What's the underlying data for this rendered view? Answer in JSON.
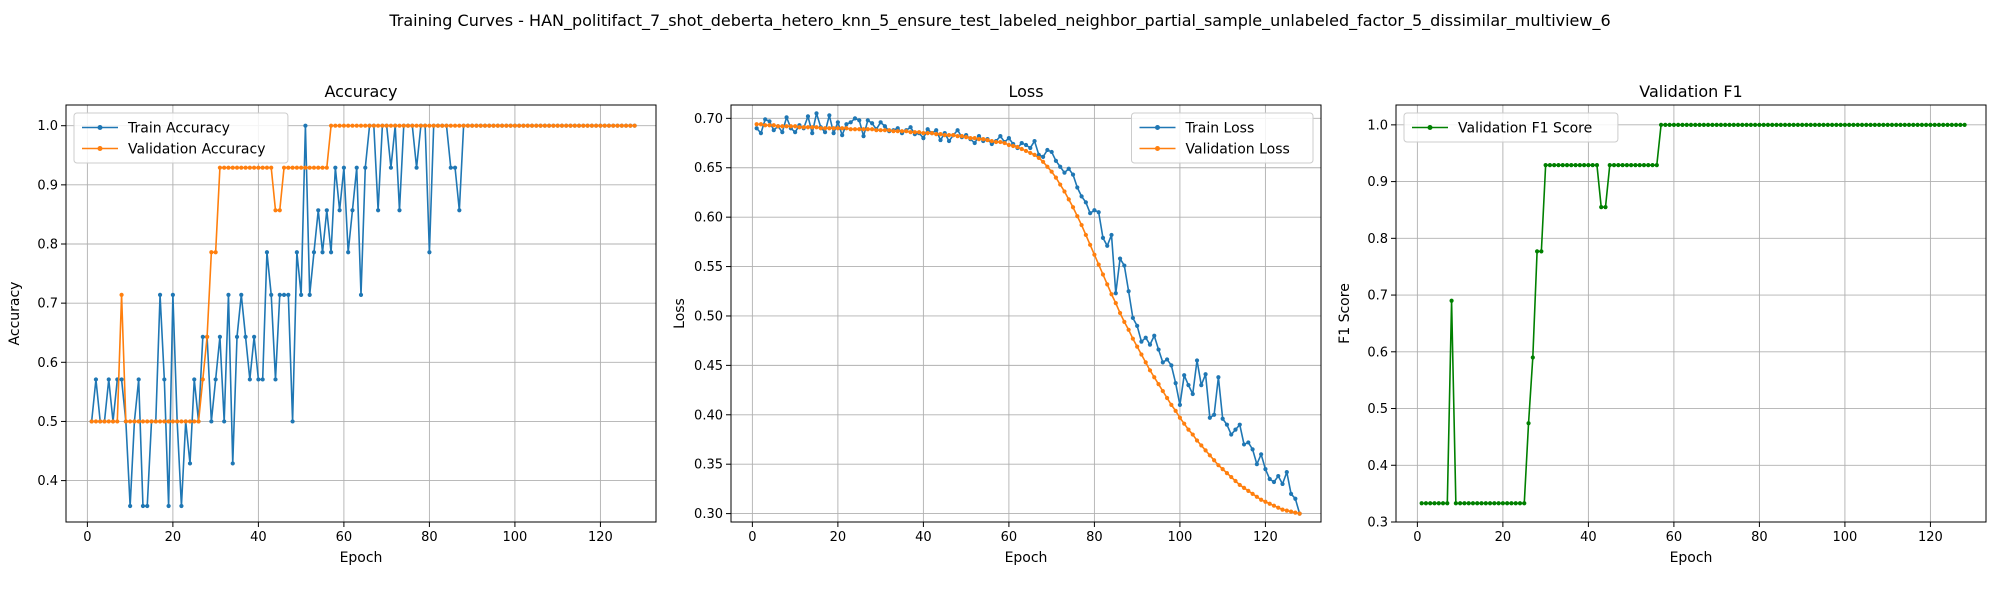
{
  "figure": {
    "suptitle": "Training Curves - HAN_politifact_7_shot_deberta_hetero_knn_5_ensure_test_labeled_neighbor_partial_sample_unlabeled_factor_5_dissimilar_multiview_6"
  },
  "chart_data": [
    {
      "type": "line",
      "title": "Accuracy",
      "xlabel": "Epoch",
      "ylabel": "Accuracy",
      "xlim": [
        -5,
        133
      ],
      "ylim": [
        0.33,
        1.035
      ],
      "xticks": [
        0,
        20,
        40,
        60,
        80,
        100,
        120
      ],
      "yticks": [
        0.4,
        0.5,
        0.6,
        0.7,
        0.8,
        0.9,
        1.0
      ],
      "ytick_labels": [
        "0.4",
        "0.5",
        "0.6",
        "0.7",
        "0.8",
        "0.9",
        "1.0"
      ],
      "grid": true,
      "legend_position": "upper-left",
      "series": [
        {
          "name": "Train Accuracy",
          "color": "#1f77b4",
          "x_start": 1,
          "values": [
            0.5,
            0.571,
            0.5,
            0.5,
            0.571,
            0.5,
            0.571,
            0.571,
            0.5,
            0.357,
            0.5,
            0.571,
            0.357,
            0.357,
            0.5,
            0.5,
            0.714,
            0.571,
            0.357,
            0.714,
            0.5,
            0.357,
            0.5,
            0.429,
            0.571,
            0.5,
            0.643,
            0.643,
            0.5,
            0.571,
            0.643,
            0.5,
            0.714,
            0.429,
            0.643,
            0.714,
            0.643,
            0.571,
            0.643,
            0.571,
            0.571,
            0.786,
            0.714,
            0.571,
            0.714,
            0.714,
            0.714,
            0.5,
            0.786,
            0.714,
            1.0,
            0.714,
            0.786,
            0.857,
            0.786,
            0.857,
            0.786,
            0.929,
            0.857,
            0.929,
            0.786,
            0.857,
            0.929,
            0.714,
            0.929,
            1.0,
            1.0,
            0.857,
            1.0,
            1.0,
            0.929,
            1.0,
            0.857,
            1.0,
            1.0,
            1.0,
            0.929,
            1.0,
            1.0,
            0.786,
            1.0,
            1.0,
            1.0,
            1.0,
            0.929,
            0.929,
            0.857,
            1.0,
            1.0,
            1.0,
            1.0,
            1.0,
            1.0,
            1.0,
            1.0,
            1.0,
            1.0,
            1.0,
            1.0,
            1.0,
            1.0,
            1.0,
            1.0,
            1.0,
            1.0,
            1.0,
            1.0,
            1.0,
            1.0,
            1.0,
            1.0,
            1.0,
            1.0,
            1.0,
            1.0,
            1.0,
            1.0,
            1.0,
            1.0,
            1.0,
            1.0,
            1.0,
            1.0,
            1.0,
            1.0,
            1.0,
            1.0,
            1.0
          ]
        },
        {
          "name": "Validation Accuracy",
          "color": "#ff7f0e",
          "x_start": 1,
          "values": [
            0.5,
            0.5,
            0.5,
            0.5,
            0.5,
            0.5,
            0.5,
            0.714,
            0.5,
            0.5,
            0.5,
            0.5,
            0.5,
            0.5,
            0.5,
            0.5,
            0.5,
            0.5,
            0.5,
            0.5,
            0.5,
            0.5,
            0.5,
            0.5,
            0.5,
            0.5,
            0.571,
            0.643,
            0.786,
            0.786,
            0.929,
            0.929,
            0.929,
            0.929,
            0.929,
            0.929,
            0.929,
            0.929,
            0.929,
            0.929,
            0.929,
            0.929,
            0.929,
            0.857,
            0.857,
            0.929,
            0.929,
            0.929,
            0.929,
            0.929,
            0.929,
            0.929,
            0.929,
            0.929,
            0.929,
            0.929,
            1.0,
            1.0,
            1.0,
            1.0,
            1.0,
            1.0,
            1.0,
            1.0,
            1.0,
            1.0,
            1.0,
            1.0,
            1.0,
            1.0,
            1.0,
            1.0,
            1.0,
            1.0,
            1.0,
            1.0,
            1.0,
            1.0,
            1.0,
            1.0,
            1.0,
            1.0,
            1.0,
            1.0,
            1.0,
            1.0,
            1.0,
            1.0,
            1.0,
            1.0,
            1.0,
            1.0,
            1.0,
            1.0,
            1.0,
            1.0,
            1.0,
            1.0,
            1.0,
            1.0,
            1.0,
            1.0,
            1.0,
            1.0,
            1.0,
            1.0,
            1.0,
            1.0,
            1.0,
            1.0,
            1.0,
            1.0,
            1.0,
            1.0,
            1.0,
            1.0,
            1.0,
            1.0,
            1.0,
            1.0,
            1.0,
            1.0,
            1.0,
            1.0,
            1.0,
            1.0,
            1.0,
            1.0
          ]
        }
      ]
    },
    {
      "type": "line",
      "title": "Loss",
      "xlabel": "Epoch",
      "ylabel": "Loss",
      "xlim": [
        -5,
        133
      ],
      "ylim": [
        0.2915,
        0.7135
      ],
      "xticks": [
        0,
        20,
        40,
        60,
        80,
        100,
        120
      ],
      "yticks": [
        0.3,
        0.35,
        0.4,
        0.45,
        0.5,
        0.55,
        0.6,
        0.65,
        0.7
      ],
      "ytick_labels": [
        "0.30",
        "0.35",
        "0.40",
        "0.45",
        "0.50",
        "0.55",
        "0.60",
        "0.65",
        "0.70"
      ],
      "grid": true,
      "legend_position": "upper-right",
      "series": [
        {
          "name": "Train Loss",
          "color": "#1f77b4",
          "x_start": 1,
          "values": [
            0.69,
            0.685,
            0.699,
            0.697,
            0.688,
            0.692,
            0.686,
            0.701,
            0.69,
            0.686,
            0.693,
            0.69,
            0.702,
            0.685,
            0.705,
            0.691,
            0.686,
            0.703,
            0.685,
            0.696,
            0.683,
            0.694,
            0.696,
            0.7,
            0.698,
            0.682,
            0.698,
            0.695,
            0.689,
            0.696,
            0.692,
            0.687,
            0.688,
            0.69,
            0.685,
            0.688,
            0.691,
            0.684,
            0.685,
            0.68,
            0.689,
            0.685,
            0.688,
            0.678,
            0.685,
            0.677,
            0.683,
            0.688,
            0.681,
            0.683,
            0.679,
            0.675,
            0.682,
            0.677,
            0.679,
            0.674,
            0.677,
            0.682,
            0.676,
            0.68,
            0.674,
            0.67,
            0.675,
            0.673,
            0.67,
            0.677,
            0.663,
            0.661,
            0.668,
            0.666,
            0.657,
            0.651,
            0.645,
            0.649,
            0.643,
            0.63,
            0.621,
            0.615,
            0.604,
            0.607,
            0.605,
            0.579,
            0.571,
            0.582,
            0.523,
            0.558,
            0.551,
            0.525,
            0.498,
            0.49,
            0.474,
            0.478,
            0.471,
            0.48,
            0.466,
            0.453,
            0.456,
            0.45,
            0.432,
            0.41,
            0.44,
            0.43,
            0.421,
            0.455,
            0.43,
            0.441,
            0.397,
            0.4,
            0.438,
            0.396,
            0.39,
            0.38,
            0.385,
            0.39,
            0.37,
            0.372,
            0.365,
            0.35,
            0.36,
            0.345,
            0.335,
            0.332,
            0.338,
            0.33,
            0.342,
            0.32,
            0.315,
            0.3
          ]
        },
        {
          "name": "Validation Loss",
          "color": "#ff7f0e",
          "x_start": 1,
          "values": [
            0.694,
            0.694,
            0.693,
            0.693,
            0.693,
            0.692,
            0.692,
            0.692,
            0.692,
            0.692,
            0.691,
            0.691,
            0.691,
            0.691,
            0.691,
            0.69,
            0.69,
            0.69,
            0.69,
            0.69,
            0.69,
            0.69,
            0.689,
            0.689,
            0.689,
            0.689,
            0.689,
            0.689,
            0.688,
            0.688,
            0.688,
            0.688,
            0.687,
            0.687,
            0.687,
            0.687,
            0.686,
            0.686,
            0.686,
            0.685,
            0.685,
            0.685,
            0.684,
            0.684,
            0.683,
            0.683,
            0.683,
            0.682,
            0.682,
            0.681,
            0.68,
            0.68,
            0.679,
            0.679,
            0.678,
            0.677,
            0.676,
            0.676,
            0.675,
            0.673,
            0.672,
            0.671,
            0.669,
            0.667,
            0.665,
            0.663,
            0.66,
            0.656,
            0.651,
            0.646,
            0.64,
            0.633,
            0.626,
            0.618,
            0.61,
            0.601,
            0.592,
            0.582,
            0.572,
            0.562,
            0.552,
            0.542,
            0.532,
            0.522,
            0.513,
            0.503,
            0.494,
            0.486,
            0.477,
            0.469,
            0.461,
            0.453,
            0.445,
            0.438,
            0.431,
            0.424,
            0.417,
            0.41,
            0.404,
            0.397,
            0.391,
            0.385,
            0.38,
            0.374,
            0.369,
            0.364,
            0.359,
            0.354,
            0.349,
            0.345,
            0.341,
            0.337,
            0.333,
            0.329,
            0.326,
            0.323,
            0.32,
            0.317,
            0.314,
            0.312,
            0.31,
            0.308,
            0.306,
            0.304,
            0.303,
            0.302,
            0.301,
            0.3
          ]
        }
      ]
    },
    {
      "type": "line",
      "title": "Validation F1",
      "xlabel": "Epoch",
      "ylabel": "F1 Score",
      "xlim": [
        -5,
        133
      ],
      "ylim": [
        0.3,
        1.035
      ],
      "xticks": [
        0,
        20,
        40,
        60,
        80,
        100,
        120
      ],
      "yticks": [
        0.3,
        0.4,
        0.5,
        0.6,
        0.7,
        0.8,
        0.9,
        1.0
      ],
      "ytick_labels": [
        "0.3",
        "0.4",
        "0.5",
        "0.6",
        "0.7",
        "0.8",
        "0.9",
        "1.0"
      ],
      "grid": true,
      "legend_position": "upper-left",
      "series": [
        {
          "name": "Validation F1 Score",
          "color": "#008000",
          "x_start": 1,
          "values": [
            0.333,
            0.333,
            0.333,
            0.333,
            0.333,
            0.333,
            0.333,
            0.69,
            0.333,
            0.333,
            0.333,
            0.333,
            0.333,
            0.333,
            0.333,
            0.333,
            0.333,
            0.333,
            0.333,
            0.333,
            0.333,
            0.333,
            0.333,
            0.333,
            0.333,
            0.474,
            0.59,
            0.777,
            0.777,
            0.929,
            0.929,
            0.929,
            0.929,
            0.929,
            0.929,
            0.929,
            0.929,
            0.929,
            0.929,
            0.929,
            0.929,
            0.929,
            0.855,
            0.855,
            0.929,
            0.929,
            0.929,
            0.929,
            0.929,
            0.929,
            0.929,
            0.929,
            0.929,
            0.929,
            0.929,
            0.929,
            1.0,
            1.0,
            1.0,
            1.0,
            1.0,
            1.0,
            1.0,
            1.0,
            1.0,
            1.0,
            1.0,
            1.0,
            1.0,
            1.0,
            1.0,
            1.0,
            1.0,
            1.0,
            1.0,
            1.0,
            1.0,
            1.0,
            1.0,
            1.0,
            1.0,
            1.0,
            1.0,
            1.0,
            1.0,
            1.0,
            1.0,
            1.0,
            1.0,
            1.0,
            1.0,
            1.0,
            1.0,
            1.0,
            1.0,
            1.0,
            1.0,
            1.0,
            1.0,
            1.0,
            1.0,
            1.0,
            1.0,
            1.0,
            1.0,
            1.0,
            1.0,
            1.0,
            1.0,
            1.0,
            1.0,
            1.0,
            1.0,
            1.0,
            1.0,
            1.0,
            1.0,
            1.0,
            1.0,
            1.0,
            1.0,
            1.0,
            1.0,
            1.0,
            1.0,
            1.0,
            1.0,
            1.0
          ]
        }
      ]
    }
  ]
}
